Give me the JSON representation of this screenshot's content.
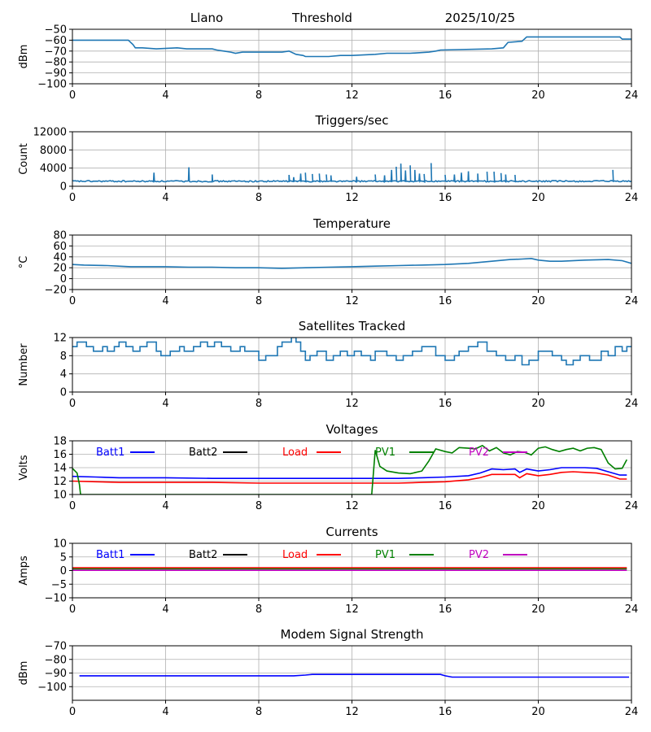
{
  "header": {
    "station": "Llano",
    "label": "Threshold",
    "date": "2025/10/25"
  },
  "colors": {
    "default_line": "#1f77b4",
    "grid": "#b0b0b0"
  },
  "chart_data": [
    {
      "id": "threshold",
      "type": "line",
      "title": "",
      "ylabel": "dBm",
      "xlim": [
        0,
        24
      ],
      "ylim": [
        -100,
        -50
      ],
      "xticks": [
        "0",
        "4",
        "8",
        "12",
        "16",
        "20",
        "24"
      ],
      "yticks": [
        -100,
        -90,
        -80,
        -70,
        -60,
        -50
      ],
      "ytick_labels": [
        "−100",
        "−90",
        "−80",
        "−70",
        "−60",
        "−50"
      ],
      "series": [
        {
          "name": "Threshold",
          "color": "#1f77b4",
          "x": [
            0,
            2.4,
            2.6,
            2.7,
            3.0,
            3.6,
            4.5,
            4.9,
            5.2,
            6.0,
            6.2,
            6.5,
            6.8,
            7.0,
            7.3,
            9.0,
            9.3,
            9.6,
            9.9,
            10.0,
            11.0,
            11.5,
            12.0,
            13.0,
            13.5,
            14.5,
            15.3,
            15.6,
            15.8,
            18.0,
            18.5,
            18.7,
            19.3,
            19.5,
            20.2,
            20.5,
            21.0,
            23.5,
            23.6,
            24
          ],
          "y": [
            -60,
            -60,
            -64,
            -67,
            -67,
            -68,
            -67,
            -68,
            -68,
            -68,
            -69,
            -70,
            -71,
            -72,
            -71,
            -71,
            -70,
            -73,
            -74,
            -75,
            -75,
            -74,
            -74,
            -73,
            -72,
            -72,
            -71,
            -70,
            -69,
            -68,
            -67,
            -62,
            -61,
            -57,
            -57,
            -57,
            -57,
            -57,
            -59,
            -59
          ]
        }
      ]
    },
    {
      "id": "triggers",
      "type": "line",
      "title": "Triggers/sec",
      "ylabel": "Count",
      "xlim": [
        0,
        24
      ],
      "ylim": [
        0,
        12000
      ],
      "xticks": [
        "0",
        "4",
        "8",
        "12",
        "16",
        "20",
        "24"
      ],
      "yticks": [
        0,
        4000,
        8000,
        12000
      ],
      "ytick_labels": [
        "0",
        "4000",
        "8000",
        "12000"
      ],
      "series": [
        {
          "name": "Triggers",
          "color": "#1f77b4",
          "baseline": 1100,
          "jitter": 150,
          "noisy": true,
          "x": [
            3.5,
            5.0,
            6.0,
            9.3,
            9.5,
            9.8,
            10.0,
            10.3,
            10.6,
            10.9,
            11.1,
            12.2,
            13.0,
            13.4,
            13.7,
            13.9,
            14.1,
            14.3,
            14.5,
            14.7,
            14.9,
            15.1,
            15.4,
            16.0,
            16.4,
            16.7,
            17.0,
            17.4,
            17.8,
            18.1,
            18.4,
            18.6,
            19.0,
            23.2
          ],
          "y": [
            3000,
            4200,
            2600,
            2500,
            2000,
            2800,
            3000,
            2700,
            2800,
            2600,
            2400,
            2100,
            2600,
            2400,
            3600,
            4300,
            5000,
            3500,
            4600,
            3600,
            2800,
            2700,
            5100,
            2500,
            2600,
            3000,
            3300,
            2800,
            3200,
            3200,
            2900,
            2600,
            2500,
            3600
          ]
        }
      ]
    },
    {
      "id": "temperature",
      "type": "line",
      "title": "Temperature",
      "ylabel": "°C",
      "xlim": [
        0,
        24
      ],
      "ylim": [
        -20,
        80
      ],
      "xticks": [
        "0",
        "4",
        "8",
        "12",
        "16",
        "20",
        "24"
      ],
      "yticks": [
        -20,
        0,
        20,
        40,
        60,
        80
      ],
      "ytick_labels": [
        "−20",
        "0",
        "20",
        "40",
        "60",
        "80"
      ],
      "series": [
        {
          "name": "Temperature",
          "color": "#1f77b4",
          "x": [
            0,
            0.5,
            1.5,
            2.5,
            4.0,
            5.0,
            6.0,
            7.0,
            8.0,
            9.0,
            10.0,
            11.0,
            12.0,
            13.0,
            14.0,
            15.0,
            16.0,
            17.0,
            18.0,
            18.8,
            19.3,
            19.7,
            20.0,
            20.5,
            21.0,
            22.0,
            23.0,
            23.6,
            24
          ],
          "y": [
            26,
            25,
            24,
            22,
            22,
            21,
            21,
            20,
            20,
            19,
            20,
            21,
            22,
            23,
            24,
            25,
            26,
            28,
            32,
            35,
            36,
            37,
            34,
            32,
            32,
            34,
            35,
            33,
            28
          ]
        }
      ]
    },
    {
      "id": "satellites",
      "type": "line",
      "title": "Satellites Tracked",
      "ylabel": "Number",
      "xlim": [
        0,
        24
      ],
      "ylim": [
        0,
        12
      ],
      "xticks": [
        "0",
        "4",
        "8",
        "12",
        "16",
        "20",
        "24"
      ],
      "yticks": [
        0,
        4,
        8,
        12
      ],
      "ytick_labels": [
        "0",
        "4",
        "8",
        "12"
      ],
      "series": [
        {
          "name": "Satellites",
          "color": "#1f77b4",
          "step": true,
          "x": [
            0,
            0.2,
            0.6,
            0.9,
            1.3,
            1.5,
            1.8,
            2.0,
            2.3,
            2.6,
            2.9,
            3.2,
            3.6,
            3.8,
            4.2,
            4.6,
            4.8,
            5.2,
            5.5,
            5.8,
            6.1,
            6.4,
            6.8,
            7.2,
            7.4,
            7.7,
            8.0,
            8.3,
            8.8,
            9.0,
            9.4,
            9.6,
            9.8,
            10.0,
            10.2,
            10.5,
            10.9,
            11.2,
            11.5,
            11.8,
            12.1,
            12.4,
            12.8,
            13.0,
            13.5,
            13.9,
            14.2,
            14.6,
            15.0,
            15.6,
            16.0,
            16.4,
            16.6,
            17.0,
            17.4,
            17.8,
            18.2,
            18.6,
            19.0,
            19.3,
            19.6,
            20.0,
            20.6,
            21.0,
            21.2,
            21.5,
            21.8,
            22.2,
            22.7,
            23.0,
            23.3,
            23.6,
            23.8,
            24
          ],
          "y": [
            10,
            11,
            10,
            9,
            10,
            9,
            10,
            11,
            10,
            9,
            10,
            11,
            9,
            8,
            9,
            10,
            9,
            10,
            11,
            10,
            11,
            10,
            9,
            10,
            9,
            9,
            7,
            8,
            10,
            11,
            12,
            11,
            9,
            7,
            8,
            9,
            7,
            8,
            9,
            8,
            9,
            8,
            7,
            9,
            8,
            7,
            8,
            9,
            10,
            8,
            7,
            8,
            9,
            10,
            11,
            9,
            8,
            7,
            8,
            6,
            7,
            9,
            8,
            7,
            6,
            7,
            8,
            7,
            9,
            8,
            10,
            9,
            10,
            10
          ]
        }
      ]
    },
    {
      "id": "voltages",
      "type": "line",
      "title": "Voltages",
      "ylabel": "Volts",
      "xlim": [
        0,
        24
      ],
      "ylim": [
        10,
        18
      ],
      "xticks": [
        "0",
        "4",
        "8",
        "12",
        "16",
        "20",
        "24"
      ],
      "yticks": [
        10,
        12,
        14,
        16,
        18
      ],
      "ytick_labels": [
        "10",
        "12",
        "14",
        "16",
        "18"
      ],
      "legend": [
        "Batt1",
        "Batt2",
        "Load",
        "PV1",
        "PV2"
      ],
      "series": [
        {
          "name": "Batt1",
          "color": "#0000ff",
          "x": [
            0,
            1,
            2,
            4,
            6,
            8,
            10,
            12,
            13,
            14,
            15,
            16,
            17,
            17.5,
            18,
            18.5,
            19,
            19.2,
            19.5,
            20,
            20.5,
            21,
            21.5,
            22,
            22.5,
            23,
            23.5,
            23.8
          ],
          "y": [
            12.7,
            12.6,
            12.5,
            12.5,
            12.4,
            12.4,
            12.4,
            12.4,
            12.4,
            12.4,
            12.5,
            12.6,
            12.8,
            13.2,
            13.8,
            13.7,
            13.8,
            13.3,
            13.8,
            13.5,
            13.7,
            14.0,
            14.0,
            14.0,
            13.9,
            13.4,
            12.9,
            12.9
          ]
        },
        {
          "name": "Load",
          "color": "#ff0000",
          "x": [
            0,
            1,
            2,
            4,
            6,
            8,
            10,
            12,
            13,
            14,
            15,
            16,
            17,
            17.5,
            18,
            18.5,
            19,
            19.2,
            19.5,
            20,
            20.5,
            21,
            21.5,
            22,
            22.5,
            23,
            23.5,
            23.8
          ],
          "y": [
            12.0,
            11.9,
            11.8,
            11.8,
            11.8,
            11.7,
            11.7,
            11.7,
            11.7,
            11.7,
            11.8,
            11.9,
            12.2,
            12.5,
            13.0,
            13.0,
            13.0,
            12.5,
            13.1,
            12.8,
            13.0,
            13.3,
            13.4,
            13.3,
            13.2,
            12.9,
            12.3,
            12.3
          ]
        },
        {
          "name": "PV1",
          "color": "#008000",
          "x": [
            0,
            0.2,
            0.3,
            0.35,
            12.85,
            13.0,
            13.2,
            13.5,
            14.0,
            14.5,
            15.0,
            15.3,
            15.6,
            16.0,
            16.3,
            16.6,
            17.0,
            17.3,
            17.6,
            17.9,
            18.2,
            18.5,
            18.8,
            19.1,
            19.4,
            19.7,
            20.0,
            20.3,
            20.6,
            20.9,
            21.2,
            21.5,
            21.8,
            22.1,
            22.4,
            22.7,
            23.0,
            23.3,
            23.6,
            23.8
          ],
          "y": [
            13.9,
            13.2,
            11.5,
            10,
            10,
            16.6,
            14.2,
            13.5,
            13.2,
            13.1,
            13.5,
            15.0,
            16.8,
            16.4,
            16.2,
            17.0,
            16.9,
            16.8,
            17.3,
            16.5,
            17.0,
            16.2,
            15.9,
            16.4,
            16.3,
            15.9,
            16.9,
            17.1,
            16.7,
            16.4,
            16.7,
            16.9,
            16.5,
            16.9,
            17.0,
            16.7,
            14.7,
            13.8,
            13.9,
            15.2
          ]
        }
      ]
    },
    {
      "id": "currents",
      "type": "line",
      "title": "Currents",
      "ylabel": "Amps",
      "xlim": [
        0,
        24
      ],
      "ylim": [
        -10,
        10
      ],
      "xticks": [
        "0",
        "4",
        "8",
        "12",
        "16",
        "20",
        "24"
      ],
      "yticks": [
        -10,
        -5,
        0,
        5,
        10
      ],
      "ytick_labels": [
        "−10",
        "−5",
        "0",
        "5",
        "10"
      ],
      "legend": [
        "Batt1",
        "Batt2",
        "Load",
        "PV1",
        "PV2"
      ],
      "series": [
        {
          "name": "Load",
          "color": "#ff0000",
          "x": [
            0,
            23.8
          ],
          "y": [
            1.0,
            1.0
          ]
        },
        {
          "name": "PV1",
          "color": "#008000",
          "x": [
            0,
            23.8
          ],
          "y": [
            0.6,
            0.6
          ]
        },
        {
          "name": "PV2",
          "color": "#bf00bf",
          "x": [
            0,
            23.8
          ],
          "y": [
            0.1,
            0.1
          ]
        }
      ]
    },
    {
      "id": "modem",
      "type": "line",
      "title": "Modem Signal Strength",
      "ylabel": "dBm",
      "xlim": [
        0,
        24
      ],
      "ylim": [
        -110,
        -70
      ],
      "xticks": [
        "0",
        "4",
        "8",
        "12",
        "16",
        "20",
        "24"
      ],
      "yticks": [
        -100,
        -90,
        -80,
        -70
      ],
      "ytick_labels": [
        "−100",
        "−90",
        "−80",
        "−70"
      ],
      "series": [
        {
          "name": "Modem",
          "color": "#0000ff",
          "x": [
            0.3,
            9.5,
            10.0,
            10.3,
            15.8,
            16.0,
            16.3,
            23.9
          ],
          "y": [
            -92,
            -92,
            -91.5,
            -91,
            -91,
            -92,
            -93,
            -93
          ]
        }
      ]
    }
  ],
  "legend_colors": {
    "Batt1": "#0000ff",
    "Batt2": "#000000",
    "Load": "#ff0000",
    "PV1": "#008000",
    "PV2": "#bf00bf"
  }
}
